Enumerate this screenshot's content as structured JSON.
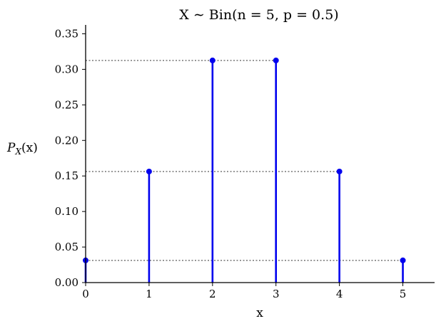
{
  "chart_data": {
    "type": "stem",
    "title": "X ∼ Bin(n = 5, p = 0.5)",
    "xlabel": "x",
    "ylabel": "P_X(x)",
    "ylabel_main": "P",
    "ylabel_sub": "X",
    "ylabel_arg": "(x)",
    "x": [
      0,
      1,
      2,
      3,
      4,
      5
    ],
    "values": [
      0.03125,
      0.15625,
      0.3125,
      0.3125,
      0.15625,
      0.03125
    ],
    "xlim": [
      0,
      5.5
    ],
    "ylim": [
      0,
      0.3625
    ],
    "xticks": [
      "0",
      "1",
      "2",
      "3",
      "4",
      "5"
    ],
    "yticks": [
      "0.00",
      "0.05",
      "0.10",
      "0.15",
      "0.20",
      "0.25",
      "0.30",
      "0.35"
    ],
    "guide_lines": [
      0.3125,
      0.15625,
      0.03125
    ],
    "colors": {
      "stem": "#0000ee",
      "guide": "#808080",
      "axis": "#000000"
    },
    "grid": false
  }
}
